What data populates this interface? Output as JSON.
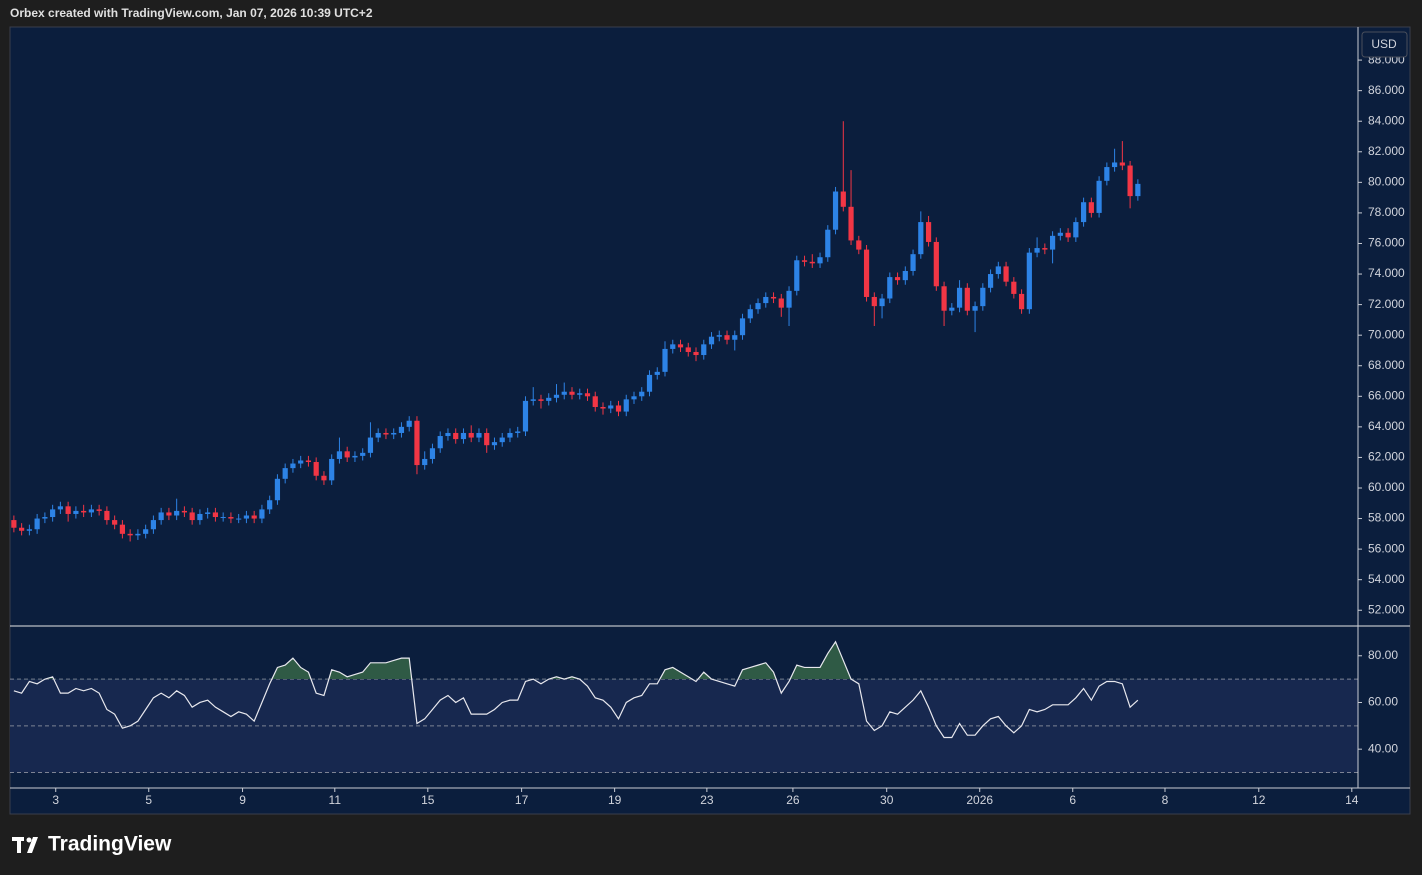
{
  "header": "Orbex created with TradingView.com, Jan 07, 2026 10:39 UTC+2",
  "currency": "USD",
  "brand": "TradingView",
  "chart_data": [
    {
      "type": "candlestick",
      "up_color": "#2d83e6",
      "down_color": "#f23645",
      "xlim": [
        -0.5,
        173.4
      ],
      "ylim": [
        51.1,
        90.1
      ],
      "yticks": [
        {
          "value": 52,
          "label": "52.000"
        },
        {
          "value": 54,
          "label": "54.000"
        },
        {
          "value": 56,
          "label": "56.000"
        },
        {
          "value": 58,
          "label": "58.000"
        },
        {
          "value": 60,
          "label": "60.000"
        },
        {
          "value": 62,
          "label": "62.000"
        },
        {
          "value": 64,
          "label": "64.000"
        },
        {
          "value": 66,
          "label": "66.000"
        },
        {
          "value": 68,
          "label": "68.000"
        },
        {
          "value": 70,
          "label": "70.000"
        },
        {
          "value": 72,
          "label": "72.000"
        },
        {
          "value": 74,
          "label": "74.000"
        },
        {
          "value": 76,
          "label": "76.000"
        },
        {
          "value": 78,
          "label": "78.000"
        },
        {
          "value": 80,
          "label": "80.000"
        },
        {
          "value": 82,
          "label": "82.000"
        },
        {
          "value": 84,
          "label": "84.000"
        },
        {
          "value": 86,
          "label": "86.000"
        },
        {
          "value": 88,
          "label": "88.000"
        }
      ],
      "open": [
        57.9,
        57.4,
        57.2,
        57.3,
        58.0,
        58.1,
        58.6,
        58.8,
        58.3,
        58.5,
        58.4,
        58.6,
        58.5,
        57.9,
        57.6,
        57.0,
        56.9,
        57.0,
        57.3,
        57.9,
        58.4,
        58.2,
        58.5,
        58.4,
        57.9,
        58.3,
        58.4,
        58.1,
        58.1,
        58.0,
        58.0,
        58.2,
        58.0,
        58.6,
        59.2,
        60.6,
        61.3,
        61.6,
        61.8,
        61.7,
        60.8,
        60.5,
        61.9,
        62.4,
        62.0,
        62.1,
        62.3,
        63.3,
        63.6,
        63.5,
        63.6,
        64.0,
        64.4,
        61.5,
        61.9,
        62.6,
        63.4,
        63.6,
        63.2,
        63.6,
        63.3,
        63.6,
        62.8,
        63.0,
        63.3,
        63.6,
        63.7,
        65.7,
        65.8,
        65.7,
        65.9,
        66.1,
        66.3,
        66.1,
        66.2,
        66.0,
        65.3,
        65.2,
        65.4,
        65.0,
        65.8,
        66.0,
        66.3,
        67.4,
        67.6,
        69.1,
        69.4,
        69.2,
        68.9,
        68.7,
        69.4,
        69.9,
        70.0,
        69.7,
        70.0,
        71.1,
        71.7,
        72.1,
        72.5,
        72.4,
        71.8,
        72.9,
        74.9,
        74.8,
        74.7,
        75.1,
        76.9,
        79.4,
        78.4,
        76.2,
        75.6,
        72.5,
        71.9,
        72.4,
        73.8,
        73.6,
        74.2,
        75.3,
        77.4,
        76.1,
        73.2,
        71.6,
        71.8,
        73.1,
        71.6,
        71.9,
        73.1,
        74.0,
        74.5,
        73.5,
        72.7,
        71.7,
        75.4,
        75.7,
        75.6,
        76.5,
        76.7,
        76.4,
        77.4,
        78.7,
        78.0,
        80.1,
        81.0,
        81.3,
        81.1,
        79.1
      ],
      "high": [
        58.2,
        57.7,
        57.6,
        58.3,
        58.4,
        58.9,
        59.1,
        59.1,
        58.8,
        58.9,
        58.9,
        58.9,
        58.8,
        58.2,
        57.9,
        57.3,
        57.3,
        57.6,
        58.2,
        58.7,
        58.7,
        59.3,
        58.8,
        58.7,
        58.6,
        58.7,
        58.7,
        58.4,
        58.4,
        58.3,
        58.5,
        58.5,
        58.9,
        59.5,
        60.9,
        61.6,
        61.9,
        62.1,
        62.1,
        62.0,
        61.1,
        62.2,
        63.3,
        62.7,
        62.4,
        62.6,
        64.3,
        63.9,
        63.9,
        63.9,
        64.3,
        64.7,
        64.7,
        62.4,
        62.9,
        63.7,
        63.9,
        63.9,
        63.9,
        64.1,
        63.9,
        63.9,
        63.3,
        63.6,
        63.9,
        64.0,
        66.0,
        66.6,
        66.1,
        66.2,
        66.8,
        66.9,
        66.6,
        66.5,
        66.5,
        66.3,
        65.6,
        65.7,
        65.7,
        66.1,
        66.3,
        66.6,
        67.7,
        67.9,
        69.6,
        69.7,
        69.7,
        69.5,
        69.2,
        69.7,
        70.2,
        70.3,
        70.3,
        70.3,
        71.4,
        72.0,
        72.4,
        72.8,
        72.8,
        72.7,
        73.2,
        75.2,
        75.2,
        75.3,
        75.4,
        77.2,
        79.7,
        84.0,
        80.8,
        76.5,
        75.9,
        72.8,
        72.7,
        74.1,
        74.1,
        74.5,
        75.6,
        78.1,
        77.8,
        76.4,
        73.5,
        72.1,
        73.6,
        73.4,
        72.2,
        73.4,
        74.3,
        74.8,
        74.8,
        73.8,
        73.0,
        75.7,
        76.4,
        76.0,
        76.8,
        77.0,
        77.0,
        77.7,
        79.0,
        79.0,
        80.4,
        81.3,
        82.2,
        82.7,
        81.4,
        80.2
      ],
      "low": [
        57.1,
        56.9,
        56.9,
        57.0,
        57.7,
        57.8,
        58.3,
        57.8,
        58.0,
        58.1,
        58.1,
        58.2,
        57.6,
        57.3,
        56.7,
        56.5,
        56.6,
        56.7,
        57.0,
        57.6,
        57.9,
        57.9,
        58.1,
        57.6,
        57.6,
        58.0,
        57.8,
        57.8,
        57.7,
        57.7,
        57.7,
        57.7,
        57.7,
        58.3,
        58.9,
        60.3,
        61.0,
        61.3,
        61.4,
        60.5,
        60.2,
        60.2,
        61.6,
        61.7,
        61.7,
        61.8,
        62.0,
        63.0,
        63.2,
        63.2,
        63.3,
        63.7,
        60.9,
        61.2,
        61.6,
        62.3,
        63.1,
        62.9,
        62.9,
        63.0,
        63.0,
        62.3,
        62.5,
        62.7,
        63.0,
        63.3,
        63.4,
        65.4,
        65.2,
        65.4,
        65.6,
        65.8,
        65.8,
        65.8,
        65.7,
        65.0,
        64.8,
        64.9,
        64.7,
        64.7,
        65.5,
        65.7,
        66.0,
        67.1,
        67.3,
        68.8,
        68.9,
        68.6,
        68.3,
        68.4,
        69.1,
        69.6,
        69.4,
        69.0,
        69.7,
        70.8,
        71.4,
        71.8,
        72.1,
        71.2,
        70.6,
        72.6,
        74.5,
        74.4,
        74.4,
        74.8,
        76.6,
        78.1,
        75.9,
        75.3,
        72.2,
        70.6,
        71.1,
        72.1,
        73.3,
        73.3,
        73.9,
        75.0,
        75.8,
        72.9,
        70.6,
        71.3,
        71.5,
        71.3,
        70.2,
        71.6,
        72.8,
        73.7,
        73.2,
        72.4,
        71.4,
        71.4,
        75.1,
        75.3,
        74.7,
        76.2,
        76.1,
        76.1,
        77.1,
        77.7,
        77.7,
        79.8,
        80.7,
        80.8,
        78.3,
        78.8
      ],
      "close": [
        57.4,
        57.2,
        57.3,
        58.0,
        58.1,
        58.6,
        58.8,
        58.3,
        58.5,
        58.4,
        58.6,
        58.5,
        57.9,
        57.6,
        57.0,
        56.9,
        57.0,
        57.3,
        57.9,
        58.4,
        58.2,
        58.5,
        58.4,
        57.9,
        58.3,
        58.4,
        58.1,
        58.1,
        58.0,
        58.0,
        58.2,
        58.0,
        58.6,
        59.2,
        60.6,
        61.3,
        61.6,
        61.8,
        61.7,
        60.8,
        60.5,
        61.9,
        62.4,
        62.0,
        62.1,
        62.3,
        63.3,
        63.6,
        63.5,
        63.6,
        64.0,
        64.4,
        61.5,
        61.9,
        62.6,
        63.4,
        63.6,
        63.2,
        63.6,
        63.3,
        63.6,
        62.8,
        63.0,
        63.3,
        63.6,
        63.7,
        65.7,
        65.8,
        65.7,
        65.9,
        66.1,
        66.3,
        66.1,
        66.2,
        66.0,
        65.3,
        65.2,
        65.4,
        65.0,
        65.8,
        66.0,
        66.3,
        67.4,
        67.6,
        69.1,
        69.4,
        69.2,
        68.9,
        68.7,
        69.4,
        69.9,
        70.0,
        69.7,
        70.0,
        71.1,
        71.7,
        72.1,
        72.5,
        72.4,
        71.8,
        72.9,
        74.9,
        74.8,
        74.7,
        75.1,
        76.9,
        79.4,
        78.4,
        76.2,
        75.6,
        72.5,
        71.9,
        72.4,
        73.8,
        73.6,
        74.2,
        75.3,
        77.4,
        76.1,
        73.2,
        71.6,
        71.8,
        73.1,
        71.6,
        71.9,
        73.1,
        74.0,
        74.5,
        73.5,
        72.7,
        71.7,
        75.4,
        75.7,
        75.6,
        76.5,
        76.7,
        76.4,
        77.4,
        78.7,
        78.0,
        80.1,
        81.0,
        81.3,
        81.1,
        79.1,
        79.9
      ]
    },
    {
      "type": "line",
      "color": "#e8e8ee",
      "band_color": "#17284f",
      "overbought_color": "#2f5a45",
      "levels": [
        30,
        50,
        70
      ],
      "xlim": [
        -0.5,
        173.4
      ],
      "ylim": [
        23.8,
        91.9
      ],
      "yticks": [
        {
          "value": 40,
          "label": "40.00"
        },
        {
          "value": 60,
          "label": "60.00"
        },
        {
          "value": 80,
          "label": "80.00"
        }
      ],
      "xticks": [
        {
          "value": 5.4,
          "label": "3"
        },
        {
          "value": 17.4,
          "label": "5"
        },
        {
          "value": 29.5,
          "label": "9"
        },
        {
          "value": 41.4,
          "label": "11"
        },
        {
          "value": 53.4,
          "label": "15"
        },
        {
          "value": 65.5,
          "label": "17"
        },
        {
          "value": 77.5,
          "label": "19"
        },
        {
          "value": 89.4,
          "label": "23"
        },
        {
          "value": 100.5,
          "label": "26"
        },
        {
          "value": 112.6,
          "label": "30"
        },
        {
          "value": 124.6,
          "label": "2026"
        },
        {
          "value": 136.6,
          "label": "6"
        },
        {
          "value": 148.5,
          "label": "8"
        },
        {
          "value": 160.6,
          "label": "12"
        },
        {
          "value": 172.6,
          "label": "14"
        }
      ],
      "values": [
        65,
        64,
        69,
        68,
        70,
        71,
        64,
        64,
        66,
        65,
        66,
        64,
        57,
        55,
        49,
        50,
        52,
        57,
        62,
        64,
        62,
        65,
        63,
        58,
        60,
        61,
        58,
        56,
        54,
        56,
        55,
        52,
        60,
        68,
        75,
        76,
        79,
        75,
        73,
        64,
        63,
        74,
        73,
        71,
        72,
        73,
        77,
        77,
        77,
        78,
        79,
        79,
        51,
        53,
        57,
        61,
        63,
        60,
        62,
        55,
        55,
        55,
        57,
        60,
        61,
        61,
        69,
        70,
        68,
        70,
        71,
        70,
        71,
        70,
        67,
        62,
        61,
        58,
        53,
        60,
        62,
        63,
        68,
        68,
        74,
        75,
        73,
        71,
        69,
        73,
        70,
        69,
        68,
        67,
        74,
        75,
        76,
        77,
        73,
        64,
        69,
        76,
        75,
        75,
        75,
        81,
        86,
        78,
        70,
        68,
        52,
        48,
        50,
        56,
        55,
        58,
        61,
        65,
        58,
        50,
        45,
        45,
        51,
        46,
        46,
        50,
        53,
        54,
        50,
        47,
        50,
        57,
        56,
        57,
        59,
        59,
        59,
        62,
        66,
        61,
        67,
        69,
        69,
        68,
        58,
        61
      ]
    }
  ]
}
